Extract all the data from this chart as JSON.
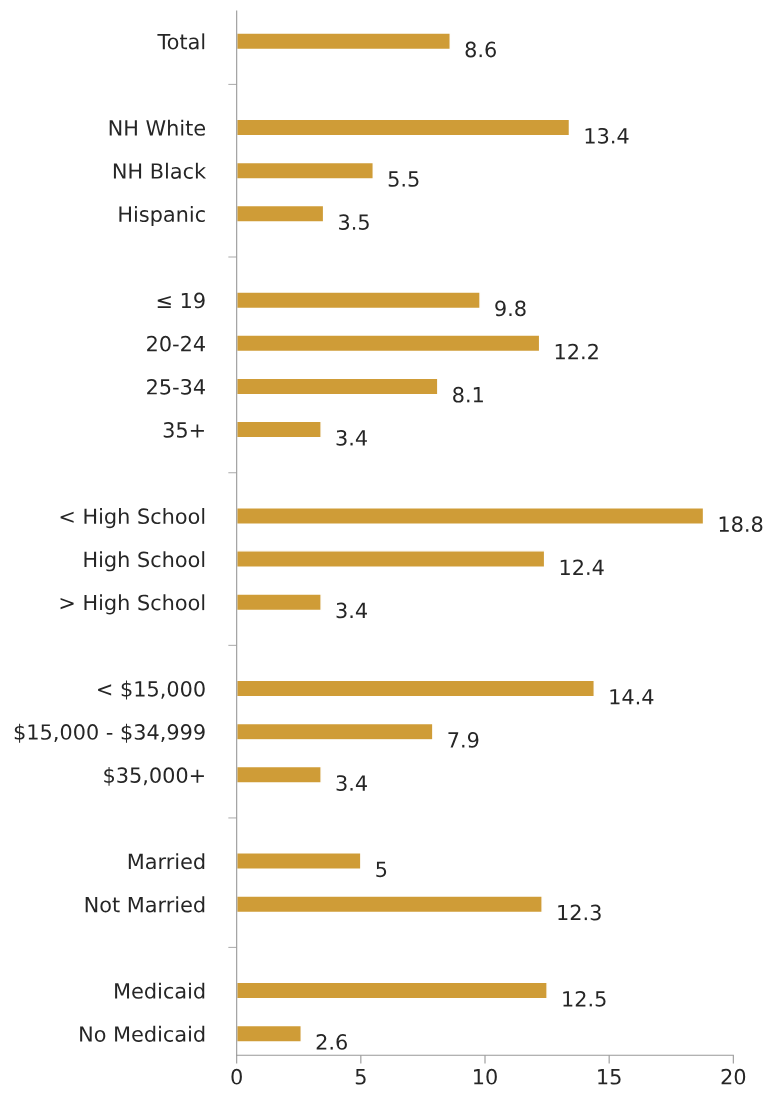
{
  "chart_data": {
    "type": "bar",
    "orientation": "horizontal",
    "categories": [
      "Total",
      null,
      "NH White",
      "NH Black",
      "Hispanic",
      null,
      "≤ 19",
      "20-24",
      "25-34",
      "35+",
      null,
      "< High School",
      "High School",
      "> High School",
      null,
      "< $15,000",
      "$15,000 - $34,999",
      "$35,000+",
      null,
      "Married",
      "Not Married",
      null,
      "Medicaid",
      "No Medicaid"
    ],
    "values": [
      8.6,
      null,
      13.4,
      5.5,
      3.5,
      null,
      9.8,
      12.2,
      8.1,
      3.4,
      null,
      18.8,
      12.4,
      3.4,
      null,
      14.4,
      7.9,
      3.4,
      null,
      5,
      12.3,
      null,
      12.5,
      2.6
    ],
    "color": "#cf9c37",
    "xlim": [
      0,
      20
    ],
    "xticks": [
      0,
      5,
      10,
      15,
      20
    ],
    "data_labels": true,
    "grid": false,
    "legend": false
  }
}
